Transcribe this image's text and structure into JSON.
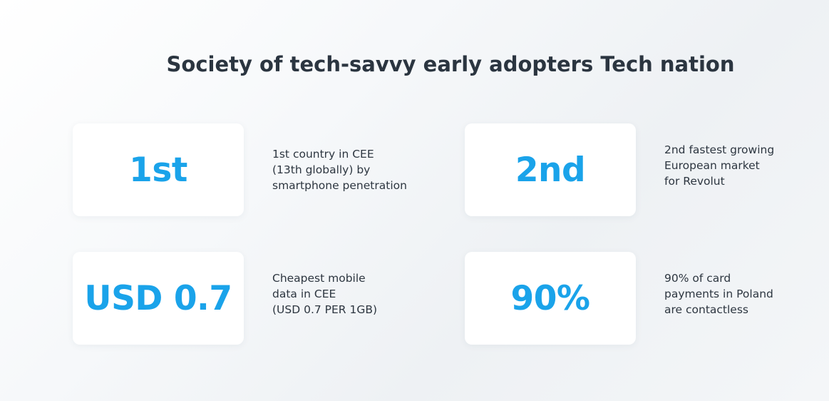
{
  "title": "Society of tech-savvy early adopters Tech nation",
  "stats": [
    {
      "value": "1st",
      "description": [
        "1st country in CEE",
        "(13th globally) by",
        "smartphone penetration"
      ]
    },
    {
      "value": "2nd",
      "description": [
        "2nd fastest growing",
        "European market",
        "for Revolut"
      ]
    },
    {
      "value": "USD 0.7",
      "description": [
        "Cheapest mobile",
        "data in CEE",
        "(USD 0.7 PER 1GB)"
      ]
    },
    {
      "value": "90%",
      "description": [
        "90% of card",
        "payments in Poland",
        "are contactless"
      ]
    }
  ],
  "colors": {
    "accent": "#1aa3ea",
    "text": "#2d3640",
    "card": "#ffffff"
  }
}
